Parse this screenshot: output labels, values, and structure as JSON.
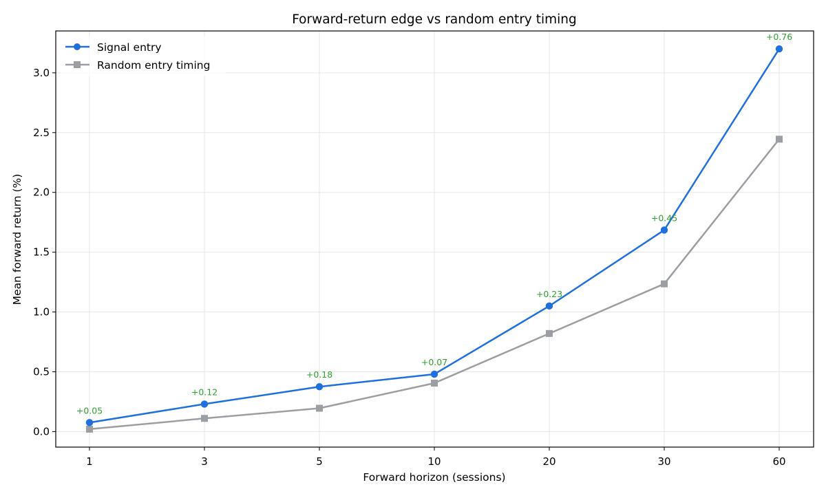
{
  "chart_data": {
    "type": "line",
    "title": "Forward-return edge vs random entry timing",
    "xlabel": "Forward horizon (sessions)",
    "ylabel": "Mean forward return (%)",
    "categories": [
      "1",
      "3",
      "5",
      "10",
      "20",
      "30",
      "60"
    ],
    "yticks": [
      "0.0",
      "0.5",
      "1.0",
      "1.5",
      "2.0",
      "2.5",
      "3.0"
    ],
    "ylim": [
      -0.13,
      3.35
    ],
    "grid": true,
    "legend_position": "top-left",
    "series": [
      {
        "name": "Signal entry",
        "color": "#1f6fde",
        "marker": "circle",
        "values": [
          0.075,
          0.23,
          0.375,
          0.48,
          1.05,
          1.685,
          3.2
        ]
      },
      {
        "name": "Random entry timing",
        "color": "#9b9ea3",
        "marker": "square",
        "values": [
          0.02,
          0.11,
          0.195,
          0.405,
          0.82,
          1.235,
          2.445
        ]
      }
    ],
    "annotations": [
      "+0.05",
      "+0.12",
      "+0.18",
      "+0.07",
      "+0.23",
      "+0.45",
      "+0.76"
    ],
    "annotation_color": "#2ca02c"
  }
}
